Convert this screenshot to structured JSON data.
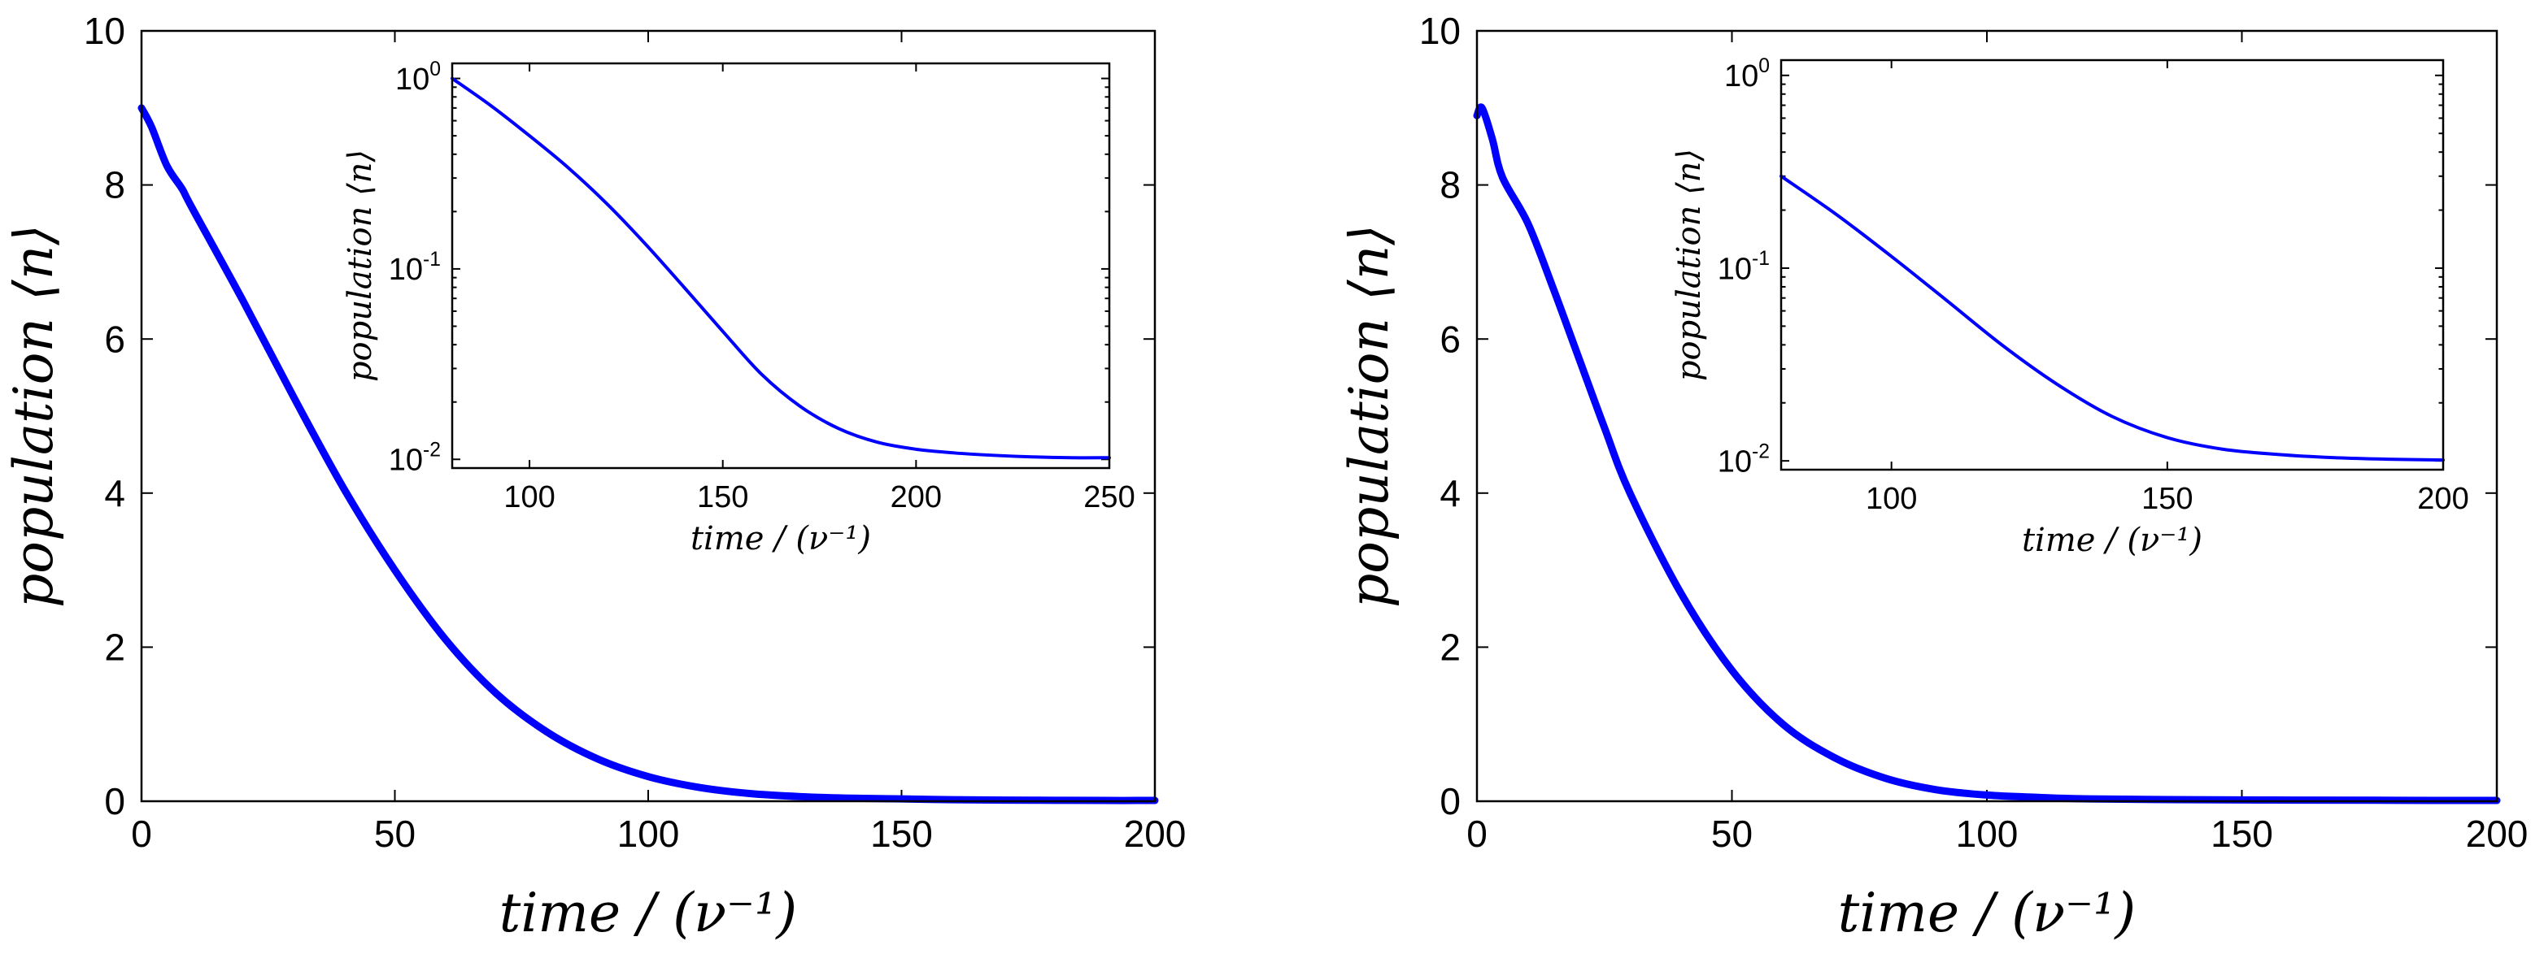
{
  "chart_data": [
    {
      "type": "line",
      "panel": "left",
      "xlabel": "time / (ν⁻¹)",
      "ylabel": "population ⟨n⟩",
      "xlim": [
        0,
        200
      ],
      "ylim": [
        0,
        10
      ],
      "xticks": [
        0,
        50,
        100,
        150,
        200
      ],
      "yticks": [
        0,
        2,
        4,
        6,
        8,
        10
      ],
      "series": [
        {
          "name": "population",
          "color": "#0000ff",
          "x": [
            0,
            2,
            5,
            8,
            10,
            20,
            30,
            40,
            50,
            60,
            70,
            80,
            90,
            100,
            110,
            120,
            130,
            140,
            150,
            160,
            170,
            180,
            190,
            200
          ],
          "y": [
            9.0,
            8.75,
            8.25,
            7.95,
            7.7,
            6.5,
            5.25,
            4.05,
            3.0,
            2.1,
            1.4,
            0.9,
            0.55,
            0.32,
            0.18,
            0.1,
            0.06,
            0.04,
            0.03,
            0.02,
            0.015,
            0.012,
            0.01,
            0.01
          ]
        }
      ],
      "inset": {
        "type": "line",
        "yscale": "log",
        "xlabel": "time / (ν⁻¹)",
        "ylabel": "population ⟨n⟩",
        "xlim": [
          80,
          250
        ],
        "ylim": [
          0.009,
          1.2
        ],
        "xticks": [
          100,
          150,
          200,
          250
        ],
        "yticks": [
          0.01,
          0.1,
          1
        ],
        "ytick_bases": [
          "10",
          "10",
          "10"
        ],
        "ytick_exponents": [
          "-2",
          "-1",
          "0"
        ],
        "series": [
          {
            "name": "population (log)",
            "color": "#0000ff",
            "x": [
              80,
              90,
              100,
              110,
              120,
              130,
              140,
              150,
              160,
              170,
              180,
              190,
              200,
              210,
              220,
              230,
              240,
              250
            ],
            "y": [
              1.0,
              0.72,
              0.5,
              0.34,
              0.22,
              0.135,
              0.08,
              0.047,
              0.028,
              0.019,
              0.0145,
              0.0123,
              0.0113,
              0.0108,
              0.0105,
              0.0103,
              0.0102,
              0.0102
            ]
          }
        ]
      }
    },
    {
      "type": "line",
      "panel": "right",
      "xlabel": "time / (ν⁻¹)",
      "ylabel": "population ⟨n⟩",
      "xlim": [
        0,
        200
      ],
      "ylim": [
        0,
        10
      ],
      "xticks": [
        0,
        50,
        100,
        150,
        200
      ],
      "yticks": [
        0,
        2,
        4,
        6,
        8,
        10
      ],
      "series": [
        {
          "name": "population",
          "color": "#0000ff",
          "x": [
            0,
            1,
            3,
            5,
            10,
            15,
            20,
            25,
            30,
            40,
            50,
            60,
            70,
            80,
            90,
            100,
            110,
            120,
            140,
            160,
            180,
            200
          ],
          "y": [
            8.9,
            9.0,
            8.6,
            8.1,
            7.5,
            6.65,
            5.75,
            4.85,
            4.0,
            2.7,
            1.7,
            1.0,
            0.57,
            0.3,
            0.15,
            0.08,
            0.05,
            0.03,
            0.02,
            0.015,
            0.012,
            0.01
          ]
        }
      ],
      "inset": {
        "type": "line",
        "yscale": "log",
        "xlabel": "time / (ν⁻¹)",
        "ylabel": "population ⟨n⟩",
        "xlim": [
          80,
          200
        ],
        "ylim": [
          0.009,
          1.2
        ],
        "xticks": [
          100,
          150,
          200
        ],
        "yticks": [
          0.01,
          0.1,
          1
        ],
        "ytick_bases": [
          "10",
          "10",
          "10"
        ],
        "ytick_exponents": [
          "-2",
          "-1",
          "0"
        ],
        "series": [
          {
            "name": "population (log)",
            "color": "#0000ff",
            "x": [
              80,
              90,
              100,
              110,
              120,
              130,
              140,
              150,
              160,
              170,
              180,
              190,
              200
            ],
            "y": [
              0.3,
              0.19,
              0.115,
              0.068,
              0.04,
              0.025,
              0.017,
              0.0132,
              0.0115,
              0.0108,
              0.0104,
              0.0102,
              0.0101
            ]
          }
        ]
      }
    }
  ]
}
